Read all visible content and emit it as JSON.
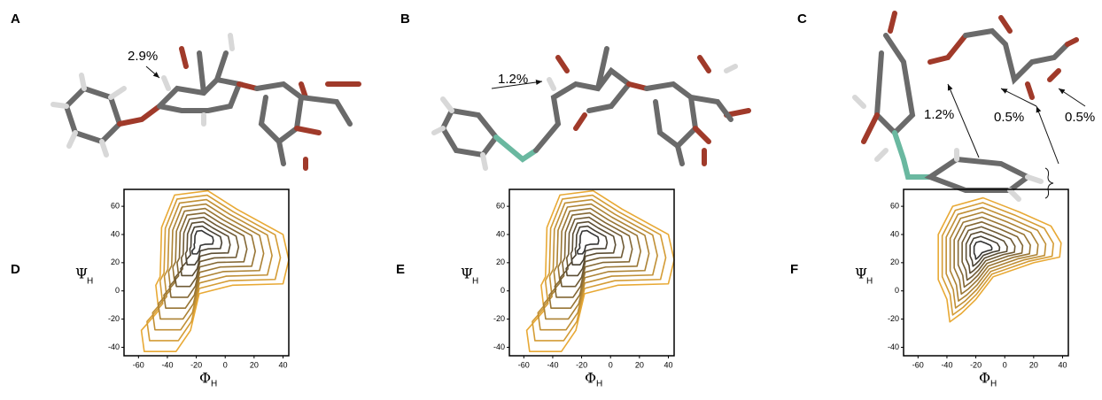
{
  "panels": [
    {
      "label": "A",
      "annotations": [
        "2.9%"
      ]
    },
    {
      "label": "B",
      "annotations": [
        "1.2%"
      ]
    },
    {
      "label": "C",
      "annotations": [
        "1.2%",
        "0.5%",
        "0.5%"
      ]
    }
  ],
  "chart_data": [
    {
      "type": "contour",
      "label": "D",
      "xlabel": "Φ",
      "xlabel_sub": "H",
      "ylabel": "Ψ",
      "ylabel_sub": "H",
      "xlim": [
        -70,
        44
      ],
      "ylim": [
        -46,
        72
      ],
      "xticks": [
        -60,
        -40,
        -20,
        0,
        20,
        40
      ],
      "yticks": [
        -40,
        -20,
        0,
        20,
        40,
        60
      ],
      "colors": [
        "#e8a935",
        "#333333"
      ]
    },
    {
      "type": "contour",
      "label": "E",
      "xlabel": "Φ",
      "xlabel_sub": "H",
      "ylabel": "Ψ",
      "ylabel_sub": "H",
      "xlim": [
        -70,
        44
      ],
      "ylim": [
        -46,
        72
      ],
      "xticks": [
        -60,
        -40,
        -20,
        0,
        20,
        40
      ],
      "yticks": [
        -40,
        -20,
        0,
        20,
        40,
        60
      ],
      "colors": [
        "#e8a935",
        "#333333"
      ]
    },
    {
      "type": "contour",
      "label": "F",
      "xlabel": "Φ",
      "xlabel_sub": "H",
      "ylabel": "Ψ",
      "ylabel_sub": "H",
      "xlim": [
        -70,
        44
      ],
      "ylim": [
        -46,
        72
      ],
      "xticks": [
        -60,
        -40,
        -20,
        0,
        20,
        40
      ],
      "yticks": [
        -40,
        -20,
        0,
        20,
        40,
        60
      ],
      "colors": [
        "#e8a935",
        "#333333"
      ]
    }
  ]
}
